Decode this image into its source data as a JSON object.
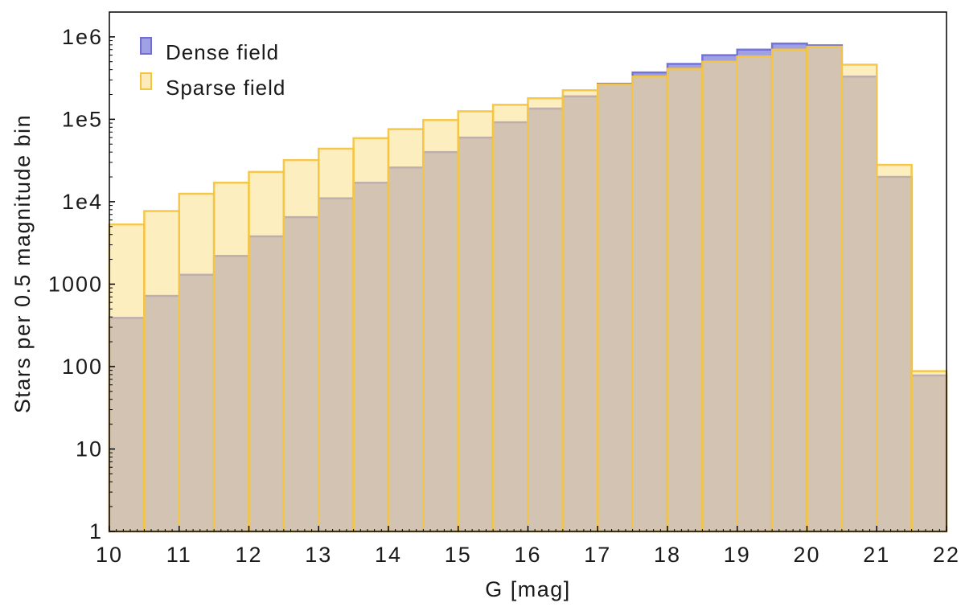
{
  "chart_data": {
    "type": "bar",
    "title": "",
    "xlabel": "G [mag]",
    "ylabel": "Stars per 0.5 magnitude bin",
    "xlim": [
      10,
      22
    ],
    "ylim": [
      1,
      2000000
    ],
    "yscale": "log",
    "grid": false,
    "legend_position": "top-left",
    "x_ticks": [
      10,
      11,
      12,
      13,
      14,
      15,
      16,
      17,
      18,
      19,
      20,
      21,
      22
    ],
    "x_tick_labels": [
      "10",
      "11",
      "12",
      "13",
      "14",
      "15",
      "16",
      "17",
      "18",
      "19",
      "20",
      "21",
      "22"
    ],
    "y_ticks": [
      1,
      10,
      100,
      1000,
      10000,
      100000,
      1000000
    ],
    "y_tick_labels": [
      "1",
      "10",
      "100",
      "1000",
      "1e4",
      "1e5",
      "1e6"
    ],
    "bin_edges": [
      10,
      10.5,
      11,
      11.5,
      12,
      12.5,
      13,
      13.5,
      14,
      14.5,
      15,
      15.5,
      16,
      16.5,
      17,
      17.5,
      18,
      18.5,
      19,
      19.5,
      20,
      20.5,
      21,
      21.5,
      22
    ],
    "series": [
      {
        "name": "Dense field",
        "fill_color": "#8f8fe0",
        "edge_color": "#6f6fd6",
        "values": [
          390,
          720,
          1300,
          2200,
          3800,
          6500,
          11000,
          17000,
          26000,
          40000,
          60000,
          92000,
          135000,
          190000,
          270000,
          370000,
          470000,
          600000,
          700000,
          830000,
          790000,
          330000,
          20000,
          78
        ]
      },
      {
        "name": "Sparse field",
        "fill_color": "#fbe08a",
        "edge_color": "#f4c542",
        "values": [
          5300,
          7700,
          12500,
          17000,
          23000,
          32000,
          44000,
          59000,
          76000,
          98000,
          125000,
          150000,
          180000,
          225000,
          265000,
          330000,
          410000,
          500000,
          580000,
          700000,
          760000,
          460000,
          28000,
          88
        ]
      }
    ]
  }
}
